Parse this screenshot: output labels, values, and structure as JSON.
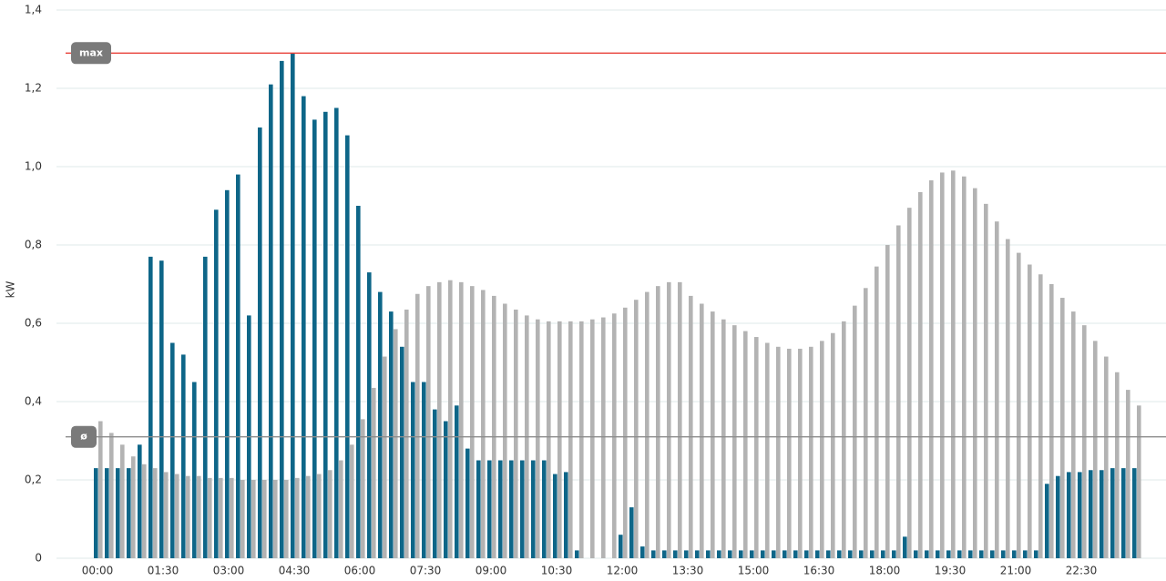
{
  "chart_data": {
    "type": "bar",
    "ylabel": "kW",
    "categories": [
      "00:00",
      null,
      null,
      null,
      null,
      null,
      "01:30",
      null,
      null,
      null,
      null,
      null,
      "03:00",
      null,
      null,
      null,
      null,
      null,
      "04:30",
      null,
      null,
      null,
      null,
      null,
      "06:00",
      null,
      null,
      null,
      null,
      null,
      "07:30",
      null,
      null,
      null,
      null,
      null,
      "09:00",
      null,
      null,
      null,
      null,
      null,
      "10:30",
      null,
      null,
      null,
      null,
      null,
      "12:00",
      null,
      null,
      null,
      null,
      null,
      "13:30",
      null,
      null,
      null,
      null,
      null,
      "15:00",
      null,
      null,
      null,
      null,
      null,
      "16:30",
      null,
      null,
      null,
      null,
      null,
      "18:00",
      null,
      null,
      null,
      null,
      null,
      "19:30",
      null,
      null,
      null,
      null,
      null,
      "21:00",
      null,
      null,
      null,
      null,
      null,
      "22:30",
      null,
      null,
      null,
      null,
      null
    ],
    "series": [
      {
        "color": "#0e6688",
        "values": [
          0.23,
          0.23,
          0.23,
          0.23,
          0.29,
          0.77,
          0.76,
          0.55,
          0.52,
          0.45,
          0.77,
          0.89,
          0.94,
          0.98,
          0.62,
          1.1,
          1.21,
          1.27,
          1.29,
          1.18,
          1.12,
          1.14,
          1.15,
          1.08,
          0.9,
          0.73,
          0.68,
          0.63,
          0.54,
          0.45,
          0.45,
          0.38,
          0.35,
          0.39,
          0.28,
          0.25,
          0.25,
          0.25,
          0.25,
          0.25,
          0.25,
          0.25,
          0.215,
          0.22,
          0.02,
          0,
          0,
          0,
          0.06,
          0.13,
          0.03,
          0.02,
          0.02,
          0.02,
          0.02,
          0.02,
          0.02,
          0.02,
          0.02,
          0.02,
          0.02,
          0.02,
          0.02,
          0.02,
          0.02,
          0.02,
          0.02,
          0.02,
          0.02,
          0.02,
          0.02,
          0.02,
          0.02,
          0.02,
          0.055,
          0.02,
          0.02,
          0.02,
          0.02,
          0.02,
          0.02,
          0.02,
          0.02,
          0.02,
          0.02,
          0.02,
          0.02,
          0.19,
          0.21,
          0.22,
          0.22,
          0.225,
          0.225,
          0.23,
          0.23,
          0.23
        ]
      },
      {
        "color": "#b3b3b3",
        "values": [
          0.35,
          0.32,
          0.29,
          0.26,
          0.24,
          0.23,
          0.22,
          0.215,
          0.21,
          0.21,
          0.205,
          0.205,
          0.205,
          0.2,
          0.2,
          0.2,
          0.2,
          0.2,
          0.205,
          0.21,
          0.215,
          0.225,
          0.25,
          0.29,
          0.355,
          0.435,
          0.515,
          0.585,
          0.635,
          0.675,
          0.695,
          0.705,
          0.71,
          0.705,
          0.695,
          0.685,
          0.67,
          0.65,
          0.635,
          0.62,
          0.61,
          0.605,
          0.605,
          0.605,
          0.605,
          0.61,
          0.615,
          0.625,
          0.64,
          0.66,
          0.68,
          0.695,
          0.705,
          0.705,
          0.67,
          0.65,
          0.63,
          0.61,
          0.595,
          0.58,
          0.565,
          0.55,
          0.54,
          0.535,
          0.535,
          0.54,
          0.555,
          0.575,
          0.605,
          0.645,
          0.69,
          0.745,
          0.8,
          0.85,
          0.895,
          0.935,
          0.965,
          0.985,
          0.99,
          0.975,
          0.945,
          0.905,
          0.86,
          0.815,
          0.78,
          0.75,
          0.725,
          0.7,
          0.665,
          0.63,
          0.595,
          0.555,
          0.515,
          0.475,
          0.43,
          0.39
        ]
      }
    ],
    "ylim": [
      0,
      1.4
    ],
    "yticks": [
      0,
      {
        "value": 0.2,
        "label": "0,2"
      },
      {
        "value": 0.4,
        "label": "0,4"
      },
      {
        "value": 0.6,
        "label": "0,6"
      },
      {
        "value": 0.8,
        "label": "0,8"
      },
      {
        "value": 1.0,
        "label": "1,0"
      },
      {
        "value": 1.2,
        "label": "1,2"
      },
      {
        "value": 1.4,
        "label": "1,4"
      }
    ],
    "grid": true,
    "reference_lines": [
      {
        "label": "max",
        "value": 1.29,
        "color": "#e8413a"
      },
      {
        "label": "ø",
        "value": 0.31,
        "color": "#8c8c8c"
      }
    ]
  }
}
